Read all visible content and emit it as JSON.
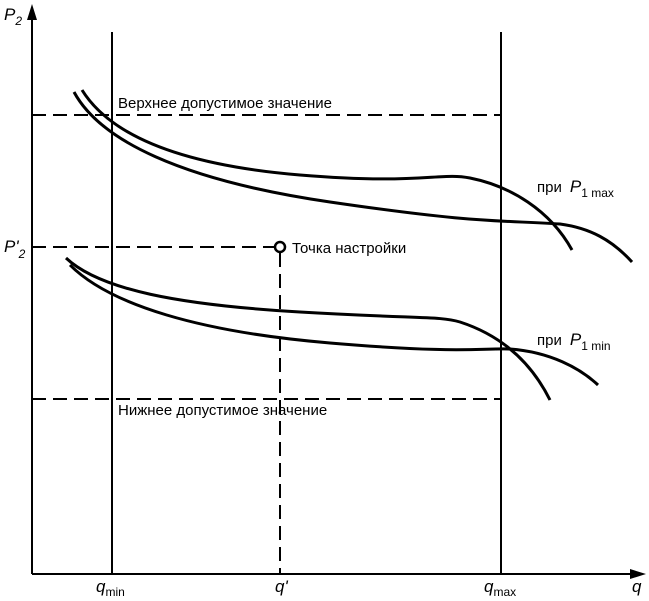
{
  "axes": {
    "y_label": "P",
    "y_label_sub": "2",
    "x_label": "q",
    "p2_prime": "P'",
    "p2_prime_sub": "2",
    "q_min": "q",
    "q_min_sub": "min",
    "q_prime": "q'",
    "q_max": "q",
    "q_max_sub": "max"
  },
  "labels": {
    "upper_limit": "Верхнее допустимое значение",
    "lower_limit": "Нижнее допустимое значение",
    "setpoint": "Точка настройки",
    "p1max_prefix": "при",
    "p1max_var": "P",
    "p1max_sub": "1 max",
    "p1min_prefix": "при",
    "p1min_var": "P",
    "p1min_sub": "1 min"
  },
  "colors": {
    "line": "#000000"
  }
}
